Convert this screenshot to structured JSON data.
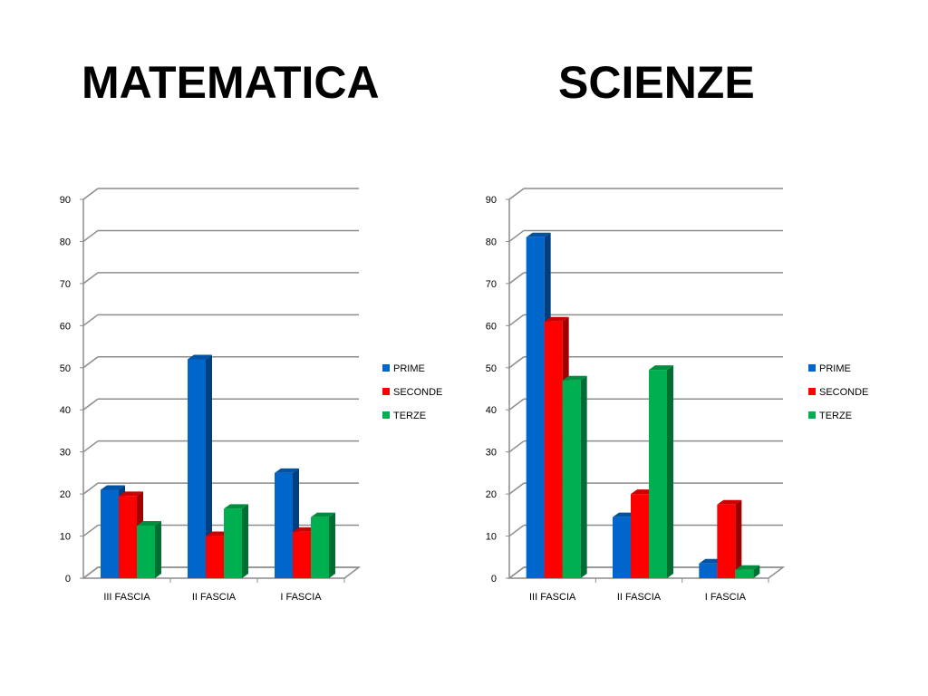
{
  "titles": {
    "left": "MATEMATICA",
    "right": "SCIENZE"
  },
  "chart_data": [
    {
      "type": "bar",
      "title": "MATEMATICA",
      "categories": [
        "III FASCIA",
        "II FASCIA",
        "I FASCIA"
      ],
      "series": [
        {
          "name": "PRIME",
          "values": [
            21,
            52,
            25
          ]
        },
        {
          "name": "SECONDE",
          "values": [
            19.5,
            10,
            11
          ]
        },
        {
          "name": "TERZE",
          "values": [
            12.5,
            16.5,
            14.5
          ]
        }
      ],
      "ylim": [
        0,
        90
      ],
      "yticks": [
        0,
        10,
        20,
        30,
        40,
        50,
        60,
        70,
        80,
        90
      ],
      "grid": true,
      "legend": "right",
      "colors": [
        "#0066cc",
        "#ff0000",
        "#00b050"
      ]
    },
    {
      "type": "bar",
      "title": "SCIENZE",
      "categories": [
        "III FASCIA",
        "II FASCIA",
        "I FASCIA"
      ],
      "series": [
        {
          "name": "PRIME",
          "values": [
            81,
            14.5,
            3.5
          ]
        },
        {
          "name": "SECONDE",
          "values": [
            61,
            20,
            17.5
          ]
        },
        {
          "name": "TERZE",
          "values": [
            47,
            49.5,
            2
          ]
        }
      ],
      "ylim": [
        0,
        90
      ],
      "yticks": [
        0,
        10,
        20,
        30,
        40,
        50,
        60,
        70,
        80,
        90
      ],
      "grid": true,
      "legend": "right",
      "colors": [
        "#0066cc",
        "#ff0000",
        "#00b050"
      ]
    }
  ]
}
